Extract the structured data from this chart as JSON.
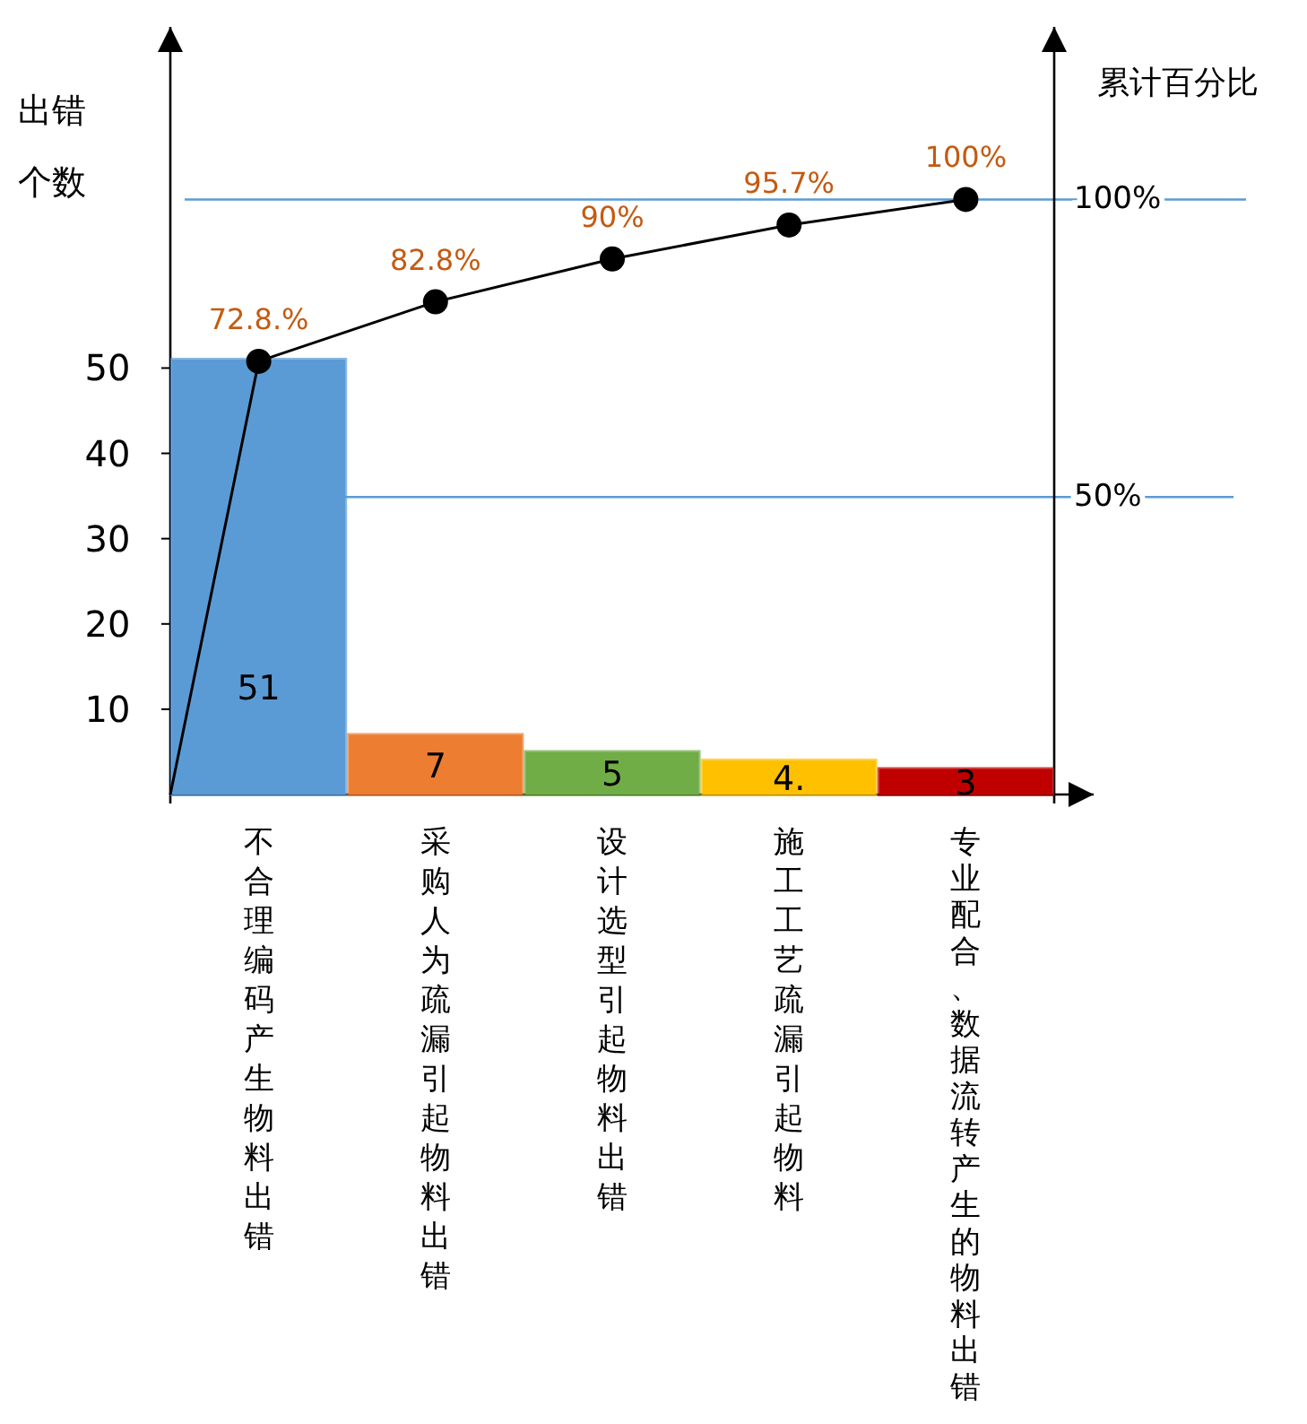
{
  "chart_data": {
    "type": "bar",
    "ylabel": "出错个数",
    "y2label": "累计百分比",
    "categories": [
      "不合理编码产生物料出错",
      "采购人为疏漏引起物料出错",
      "设计选型引起物料出错",
      "施工工艺疏漏引起物料",
      "专业配合、数据流转产生的物料出错"
    ],
    "series": [
      {
        "colors": [
          "#5b9bd5",
          "#ed7d31",
          "#70ad47",
          "#ffc000",
          "#c00000"
        ],
        "values": [
          51,
          7,
          5,
          4,
          3
        ],
        "value_labels": [
          "51",
          "7",
          "5",
          "4.",
          "3"
        ]
      },
      {
        "type": "line",
        "axis": "y2",
        "color": "#000000",
        "marker": "circle",
        "values": [
          72.8,
          82.8,
          90,
          95.7,
          100
        ],
        "value_labels": [
          "72.8.%",
          "82.8%",
          "90%",
          "95.7%",
          "100%"
        ]
      }
    ],
    "ylim": [
      0,
      90
    ],
    "yticks": [
      10,
      20,
      30,
      40,
      50
    ],
    "y2lim": [
      0,
      129
    ],
    "y2ticks": [
      {
        "value": 50,
        "label": "50%"
      },
      {
        "value": 100,
        "label": "100%"
      }
    ],
    "ref_lines": [
      {
        "axis": "y2",
        "value": 100,
        "color": "#5b9bd5"
      },
      {
        "axis": "y2",
        "value": 50,
        "color": "#5b9bd5"
      }
    ],
    "grid": false
  }
}
